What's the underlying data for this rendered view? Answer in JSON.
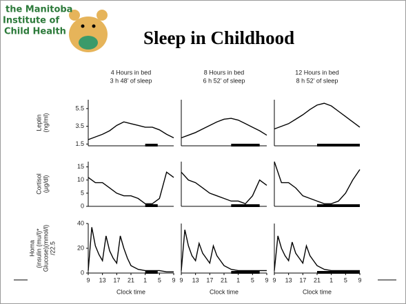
{
  "header": {
    "logo_lines": [
      "the Manitoba",
      "Institute of",
      "Child Health"
    ],
    "title": "Sleep in Childhood"
  },
  "chart_data": [
    {
      "type": "line",
      "title": [
        "4 Hours in bed",
        "3 h 48’ of sleep"
      ],
      "y_label": [
        "Leptin",
        "(ng/ml)"
      ],
      "x": [
        9,
        11,
        13,
        15,
        17,
        19,
        21,
        23,
        25,
        27,
        29,
        31,
        33
      ],
      "values": [
        2.0,
        2.3,
        2.6,
        3.0,
        3.6,
        4.0,
        3.8,
        3.6,
        3.4,
        3.4,
        3.1,
        2.6,
        2.2
      ],
      "xlim": [
        9,
        33
      ],
      "ylim": [
        1.3,
        6.5
      ],
      "yticks": [
        1.5,
        3.5,
        5.5
      ],
      "sleep_x": [
        25,
        28.5
      ],
      "color": "#000000"
    },
    {
      "type": "line",
      "title": [
        "8 Hours in bed",
        "6 h 52’ of sleep"
      ],
      "x": [
        9,
        11,
        13,
        15,
        17,
        19,
        21,
        23,
        25,
        27,
        29,
        31,
        33
      ],
      "values": [
        2.2,
        2.5,
        2.8,
        3.2,
        3.6,
        4.0,
        4.3,
        4.4,
        4.2,
        3.8,
        3.4,
        3.0,
        2.5
      ],
      "xlim": [
        9,
        33
      ],
      "ylim": [
        1.3,
        6.5
      ],
      "sleep_x": [
        23,
        31
      ],
      "color": "#000000"
    },
    {
      "type": "line",
      "title": [
        "12 Hours in bed",
        "8 h 52’ of sleep"
      ],
      "x": [
        9,
        11,
        13,
        15,
        17,
        19,
        21,
        23,
        25,
        27,
        29,
        31,
        33
      ],
      "values": [
        3.2,
        3.5,
        3.8,
        4.3,
        4.8,
        5.4,
        5.9,
        6.1,
        5.8,
        5.2,
        4.6,
        4.0,
        3.4
      ],
      "xlim": [
        9,
        33
      ],
      "ylim": [
        1.3,
        6.5
      ],
      "sleep_x": [
        21,
        33
      ],
      "color": "#000000"
    },
    {
      "type": "line",
      "y_label": [
        "Cortisol",
        "(µg/dl)"
      ],
      "x": [
        9,
        11,
        13,
        15,
        17,
        19,
        21,
        23,
        25,
        27,
        29,
        31,
        33
      ],
      "values": [
        11,
        9,
        9,
        7,
        5,
        4,
        4,
        3,
        1,
        1,
        3,
        13,
        11
      ],
      "xlim": [
        9,
        33
      ],
      "ylim": [
        0,
        17
      ],
      "yticks": [
        0,
        5,
        10,
        15
      ],
      "sleep_x": [
        25,
        28.5
      ],
      "color": "#000000"
    },
    {
      "type": "line",
      "x": [
        9,
        11,
        13,
        15,
        17,
        19,
        21,
        23,
        25,
        27,
        29,
        31,
        33
      ],
      "values": [
        13,
        10,
        9,
        7,
        5,
        4,
        3,
        2,
        2,
        1,
        4,
        10,
        8
      ],
      "xlim": [
        9,
        33
      ],
      "ylim": [
        0,
        17
      ],
      "sleep_x": [
        23,
        31
      ],
      "color": "#000000"
    },
    {
      "type": "line",
      "x": [
        9,
        11,
        13,
        15,
        17,
        19,
        21,
        23,
        25,
        27,
        29,
        31,
        33
      ],
      "values": [
        17,
        9,
        9,
        7,
        4,
        3,
        2,
        1,
        1,
        2,
        5,
        10,
        14
      ],
      "xlim": [
        9,
        33
      ],
      "ylim": [
        0,
        17
      ],
      "sleep_x": [
        21,
        33
      ],
      "color": "#000000"
    },
    {
      "type": "line",
      "y_label": [
        "Homa",
        "(insulin (mu/l)*",
        "Glucose)(mmol/l)",
        "/22.5"
      ],
      "x_label": "Clock time",
      "x": [
        9,
        10,
        11,
        12,
        13,
        14,
        15,
        16,
        17,
        18,
        19,
        20,
        21,
        23,
        25,
        27,
        29,
        31,
        33
      ],
      "values": [
        2,
        37,
        22,
        15,
        10,
        30,
        18,
        12,
        8,
        30,
        20,
        12,
        6,
        3,
        2,
        2,
        2,
        1,
        1
      ],
      "xlim": [
        9,
        33
      ],
      "ylim": [
        0,
        40
      ],
      "yticks": [
        0,
        20,
        40
      ],
      "sleep_x": [
        25,
        28.5
      ],
      "color": "#000000",
      "xticks": [
        9,
        13,
        17,
        21,
        {
          "value": 25,
          "label": "1"
        },
        {
          "value": 29,
          "label": "5"
        },
        {
          "value": 33,
          "label": "9"
        }
      ]
    },
    {
      "type": "line",
      "x_label": "Clock time",
      "x": [
        9,
        10,
        11,
        12,
        13,
        14,
        15,
        16,
        17,
        18,
        19,
        20,
        21,
        23,
        25,
        27,
        29,
        31,
        33
      ],
      "values": [
        2,
        35,
        22,
        14,
        10,
        24,
        16,
        12,
        8,
        22,
        14,
        10,
        6,
        3,
        2,
        2,
        2,
        2,
        2
      ],
      "xlim": [
        9,
        33
      ],
      "ylim": [
        0,
        40
      ],
      "sleep_x": [
        23,
        31
      ],
      "color": "#000000",
      "xticks": [
        9,
        13,
        17,
        21,
        {
          "value": 25,
          "label": "1"
        },
        {
          "value": 29,
          "label": "5"
        },
        {
          "value": 33,
          "label": "9"
        }
      ]
    },
    {
      "type": "line",
      "x_label": "Clock time",
      "x": [
        9,
        10,
        11,
        12,
        13,
        14,
        15,
        16,
        17,
        18,
        19,
        20,
        21,
        23,
        25,
        27,
        29,
        31,
        33
      ],
      "values": [
        2,
        30,
        20,
        14,
        10,
        25,
        16,
        12,
        8,
        22,
        14,
        10,
        6,
        3,
        2,
        2,
        2,
        2,
        2
      ],
      "xlim": [
        9,
        33
      ],
      "ylim": [
        0,
        40
      ],
      "sleep_x": [
        21,
        33
      ],
      "color": "#000000",
      "xticks": [
        9,
        13,
        17,
        21,
        {
          "value": 25,
          "label": "1"
        },
        {
          "value": 29,
          "label": "5"
        },
        {
          "value": 33,
          "label": "9"
        }
      ]
    }
  ]
}
